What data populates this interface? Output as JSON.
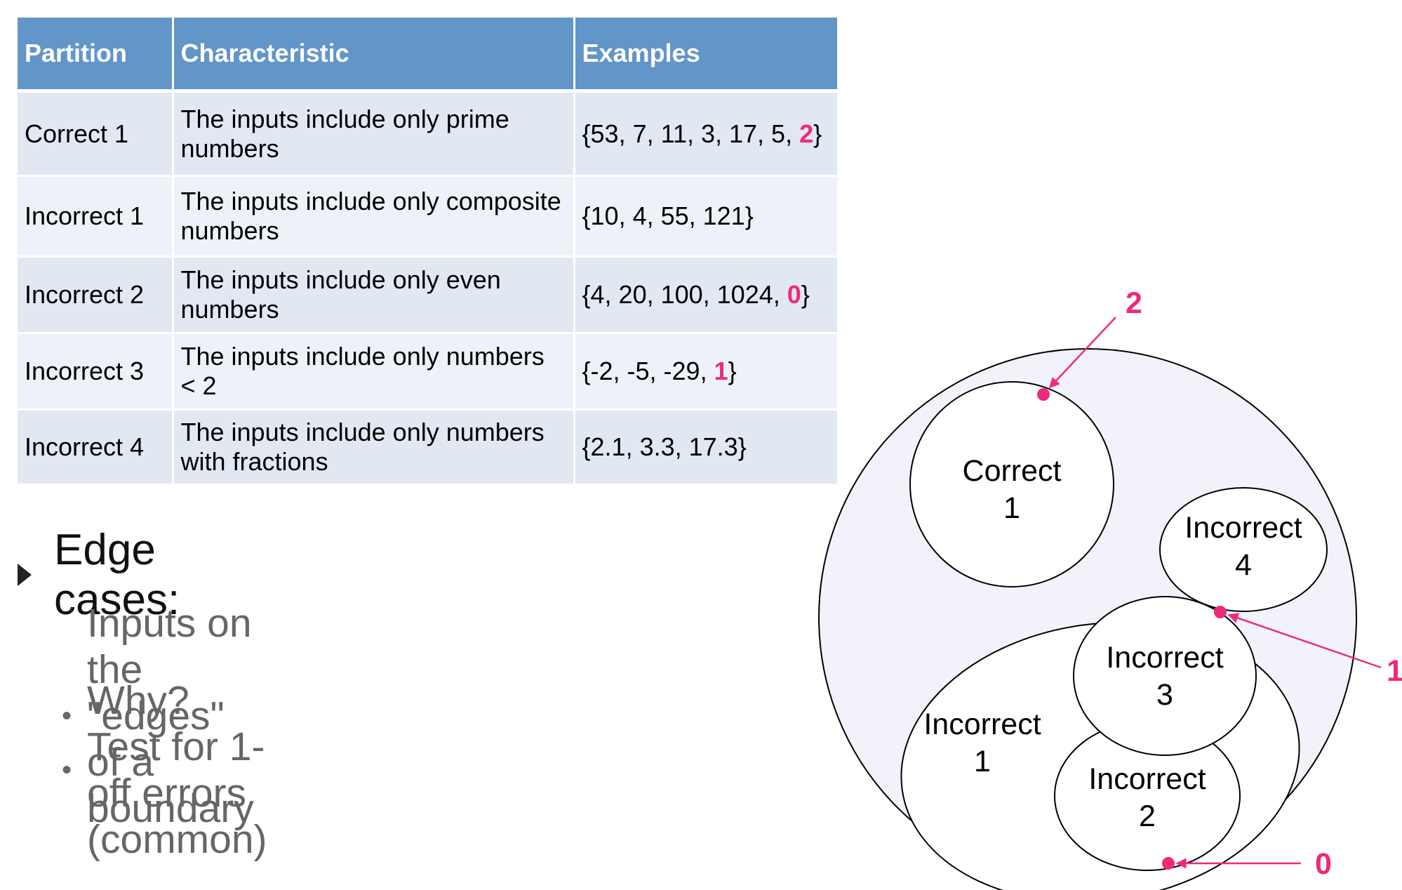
{
  "table": {
    "headers": [
      "Partition",
      "Characteristic",
      "Examples"
    ],
    "rows": [
      {
        "partition": "Correct 1",
        "characteristic": "The inputs include only prime numbers",
        "examples": "{53, 7, 11, 3, 17, 5, ",
        "highlight": "2",
        "examples_end": "}"
      },
      {
        "partition": "Incorrect 1",
        "characteristic": "The inputs include only composite numbers",
        "examples": "{10, 4, 55, 121}",
        "highlight": "",
        "examples_end": ""
      },
      {
        "partition": "Incorrect 2",
        "characteristic": "The inputs include only even numbers",
        "examples": "{4, 20, 100, 1024, ",
        "highlight": "0",
        "examples_end": "}"
      },
      {
        "partition": "Incorrect 3",
        "characteristic": "The inputs include only numbers < 2",
        "examples": "{-2, -5, -29, ",
        "highlight": "1",
        "examples_end": "}"
      },
      {
        "partition": "Incorrect 4",
        "characteristic": "The inputs include only numbers with fractions",
        "examples": "{2.1, 3.3, 17.3}",
        "highlight": "",
        "examples_end": ""
      }
    ]
  },
  "bullets": {
    "main": "Edge cases:",
    "sub": [
      "Inputs on the \"edges\" of a boundary",
      "Why? Test for 1-off errors (common)"
    ]
  },
  "diagram": {
    "labels": {
      "correct1": [
        "Correct",
        "1"
      ],
      "incorrect4": [
        "Incorrect",
        "4"
      ],
      "incorrect3": [
        "Incorrect",
        "3"
      ],
      "incorrect1": [
        "Incorrect",
        "1"
      ],
      "incorrect2": [
        "Incorrect",
        "2"
      ]
    },
    "edge_points": [
      "2",
      "1",
      "0"
    ]
  },
  "colors": {
    "header_bg": "#6295c8",
    "row_odd": "#e1e8f2",
    "row_even": "#eef2f8",
    "highlight": "#ee2a7b",
    "diagram_fill": "#f2f2fa"
  }
}
